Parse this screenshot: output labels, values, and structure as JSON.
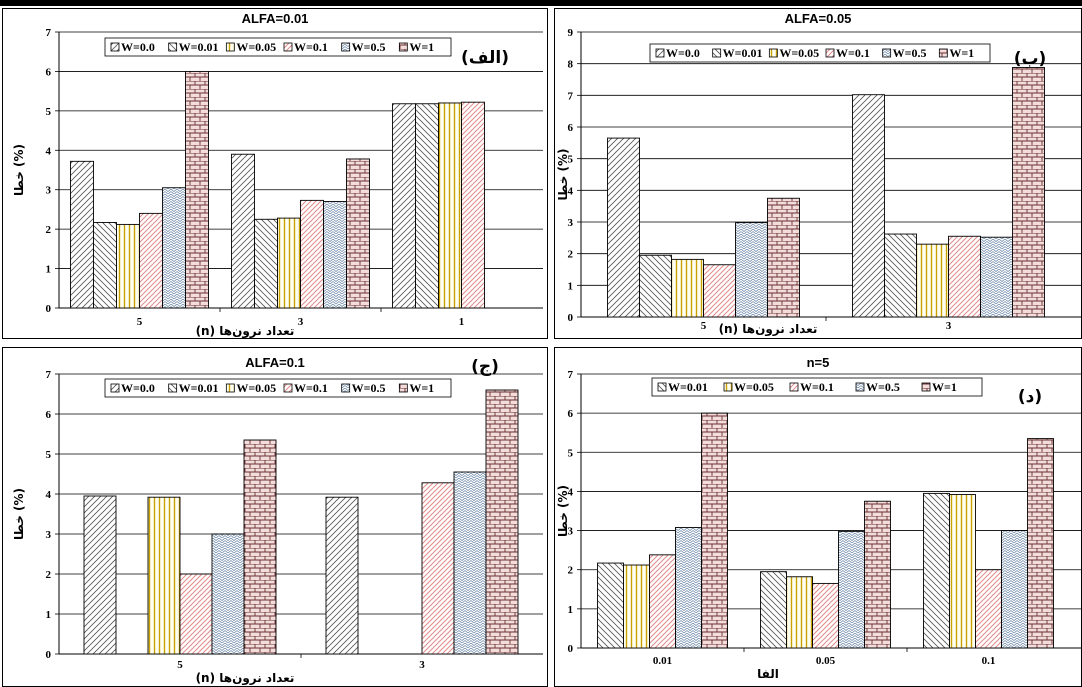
{
  "chart_data": [
    {
      "type": "bar",
      "title": "ALFA=0.01",
      "panel_label": "(الف)",
      "xlabel": "تعداد نرون‌ها (n)",
      "ylabel": "(%) خطا",
      "ylim": [
        0,
        7
      ],
      "y_ticks": [
        0,
        1,
        2,
        3,
        4,
        5,
        6,
        7
      ],
      "grid": true,
      "legend": "top",
      "categories": [
        "5",
        "3",
        "1"
      ],
      "series": [
        {
          "name": "W=0.0",
          "values": [
            3.72,
            3.9,
            5.18
          ]
        },
        {
          "name": "W=0.01",
          "values": [
            2.17,
            2.25,
            5.18
          ]
        },
        {
          "name": "W=0.05",
          "values": [
            2.12,
            2.28,
            5.2
          ]
        },
        {
          "name": "W=0.1",
          "values": [
            2.4,
            2.73,
            5.22
          ]
        },
        {
          "name": "W=0.5",
          "values": [
            3.05,
            2.7,
            null
          ]
        },
        {
          "name": "W=1",
          "values": [
            6.0,
            3.78,
            null
          ]
        }
      ]
    },
    {
      "type": "bar",
      "title": "ALFA=0.05",
      "panel_label": "(ب)",
      "xlabel": "تعداد نرون‌ها (n)",
      "ylabel": "(%) خطا",
      "ylim": [
        0,
        9
      ],
      "y_ticks": [
        0,
        1,
        2,
        3,
        4,
        5,
        6,
        7,
        8,
        9
      ],
      "grid": true,
      "legend": "top",
      "categories": [
        "5",
        "3"
      ],
      "series": [
        {
          "name": "W=0.0",
          "values": [
            5.65,
            7.02
          ]
        },
        {
          "name": "W=0.01",
          "values": [
            1.95,
            2.62
          ]
        },
        {
          "name": "W=0.05",
          "values": [
            1.82,
            2.3
          ]
        },
        {
          "name": "W=0.1",
          "values": [
            1.65,
            2.55
          ]
        },
        {
          "name": "W=0.5",
          "values": [
            2.98,
            2.52
          ]
        },
        {
          "name": "W=1",
          "values": [
            3.75,
            7.88
          ]
        }
      ]
    },
    {
      "type": "bar",
      "title": "ALFA=0.1",
      "panel_label": "(ج)",
      "xlabel": "تعداد نرون‌ها (n)",
      "ylabel": "(%) خطا",
      "ylim": [
        0,
        7
      ],
      "y_ticks": [
        0,
        1,
        2,
        3,
        4,
        5,
        6,
        7
      ],
      "grid": true,
      "legend": "top",
      "categories": [
        "5",
        "3"
      ],
      "series": [
        {
          "name": "W=0.0",
          "values": [
            3.95,
            3.92
          ]
        },
        {
          "name": "W=0.01",
          "values": [
            null,
            null
          ]
        },
        {
          "name": "W=0.05",
          "values": [
            3.92,
            null
          ]
        },
        {
          "name": "W=0.1",
          "values": [
            2.0,
            4.28
          ]
        },
        {
          "name": "W=0.5",
          "values": [
            3.0,
            4.55
          ]
        },
        {
          "name": "W=1",
          "values": [
            5.35,
            6.6
          ]
        }
      ]
    },
    {
      "type": "bar",
      "title": "n=5",
      "panel_label": "(د)",
      "xlabel": "الفا",
      "ylabel": "(%) خطا",
      "ylim": [
        0,
        7
      ],
      "y_ticks": [
        0,
        1,
        2,
        3,
        4,
        5,
        6,
        7
      ],
      "grid": true,
      "legend": "top",
      "categories": [
        "0.01",
        "0.05",
        "0.1"
      ],
      "series": [
        {
          "name": "W=0.01",
          "values": [
            2.17,
            1.95,
            3.95
          ]
        },
        {
          "name": "W=0.05",
          "values": [
            2.12,
            1.82,
            3.92
          ]
        },
        {
          "name": "W=0.1",
          "values": [
            2.38,
            1.65,
            2.0
          ]
        },
        {
          "name": "W=0.5",
          "values": [
            3.08,
            2.98,
            3.0
          ]
        },
        {
          "name": "W=1",
          "values": [
            6.0,
            3.75,
            5.35
          ]
        }
      ]
    }
  ],
  "series_styles": {
    "W=0.0": {
      "pattern": "diag-fwd",
      "fill": "#ffffff",
      "stroke": "#555555"
    },
    "W=0.01": {
      "pattern": "diag-back",
      "fill": "#ffffff",
      "stroke": "#555555"
    },
    "W=0.05": {
      "pattern": "vertical",
      "fill": "#fffff2",
      "stroke": "#c8a000"
    },
    "W=0.1": {
      "pattern": "diag-red",
      "fill": "#ffffff",
      "stroke": "#e38a8a"
    },
    "W=0.5": {
      "pattern": "zigzag",
      "fill": "#ffffff",
      "stroke": "#6a86a8"
    },
    "W=1": {
      "pattern": "brick",
      "fill": "#f2dcdc",
      "stroke": "#6b3030"
    }
  }
}
